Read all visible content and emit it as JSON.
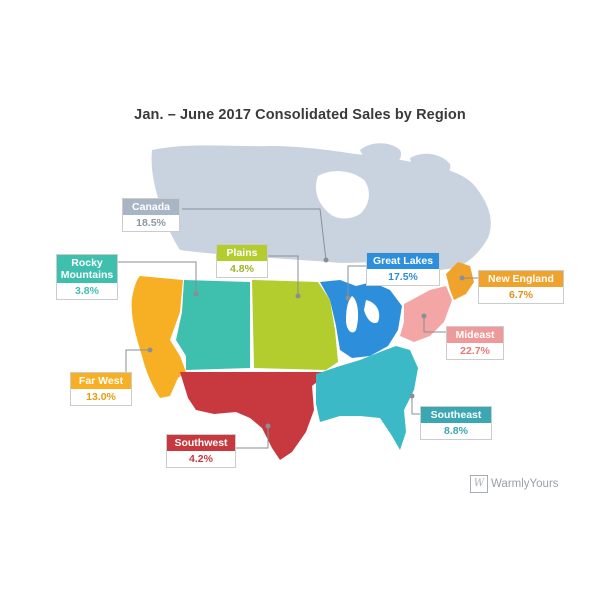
{
  "title": "Jan. – June 2017 Consolidated Sales by Region",
  "colors": {
    "canada": "#c9d3e0",
    "rocky_mountains": "#3fbfae",
    "plains": "#b3cc2e",
    "great_lakes": "#2d8fdc",
    "new_england": "#f0a32c",
    "mideast": "#f4a6a6",
    "far_west": "#f7b024",
    "southwest": "#c8393f",
    "southeast": "#3cb9c6"
  },
  "regions": {
    "canada": {
      "name": "Canada",
      "value": "18.5%"
    },
    "rocky_mountains": {
      "name": "Rocky Mountains",
      "value": "3.8%"
    },
    "plains": {
      "name": "Plains",
      "value": "4.8%"
    },
    "great_lakes": {
      "name": "Great Lakes",
      "value": "17.5%"
    },
    "new_england": {
      "name": "New England",
      "value": "6.7%"
    },
    "mideast": {
      "name": "Mideast",
      "value": "22.7%"
    },
    "far_west": {
      "name": "Far West",
      "value": "13.0%"
    },
    "southwest": {
      "name": "Southwest",
      "value": "4.2%"
    },
    "southeast": {
      "name": "Southeast",
      "value": "8.8%"
    }
  },
  "brand": {
    "icon": "warmlyyours-logo-icon",
    "text": "WarmlyYours"
  }
}
